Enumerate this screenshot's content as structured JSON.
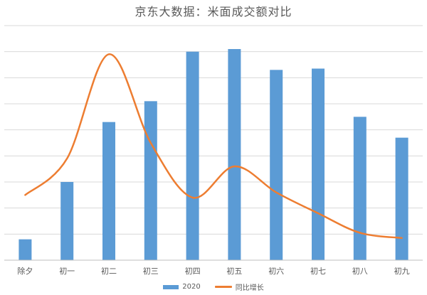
{
  "chart_data": {
    "type": "bar",
    "title": "京东大数据：米面成交额对比",
    "categories": [
      "除夕",
      "初一",
      "初二",
      "初三",
      "初四",
      "初五",
      "初六",
      "初七",
      "初八",
      "初九"
    ],
    "series": [
      {
        "name": "2020",
        "type": "bar",
        "color": "#5B9BD5",
        "values": [
          0.8,
          3.0,
          5.3,
          6.1,
          8.0,
          8.1,
          7.3,
          7.35,
          5.5,
          4.7
        ]
      },
      {
        "name": "同比增长",
        "type": "line",
        "smooth": true,
        "color": "#ED7D31",
        "values": [
          2.5,
          3.9,
          7.9,
          4.5,
          2.4,
          3.6,
          2.6,
          1.8,
          1.05,
          0.85
        ]
      }
    ],
    "ylim": [
      0,
      9
    ],
    "grid": true,
    "legend": "bottom"
  }
}
